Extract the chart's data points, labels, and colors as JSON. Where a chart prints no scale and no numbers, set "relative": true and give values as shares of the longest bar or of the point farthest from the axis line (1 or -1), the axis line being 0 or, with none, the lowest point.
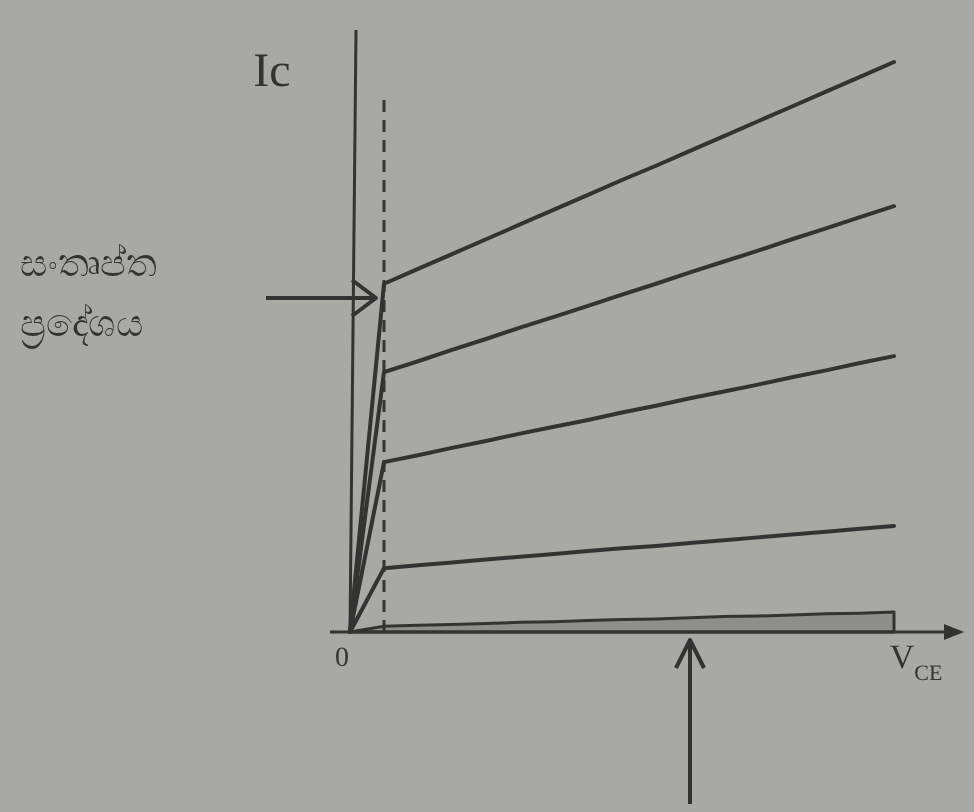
{
  "chart_data": {
    "type": "line",
    "relative": true,
    "xlabel": "V$_{CE}$",
    "ylabel": "Ic",
    "categories": [
      null,
      null,
      null,
      null,
      null,
      null,
      null,
      null,
      null,
      null,
      null,
      null,
      null,
      null,
      null,
      null,
      null
    ],
    "series": [
      {
        "color": "#333333",
        "values": [
          0,
          0.611,
          0.637,
          0.663,
          0.689,
          0.715,
          0.741,
          0.767,
          0.793,
          0.818,
          0.844,
          0.87,
          0.896,
          0.922,
          0.948,
          0.974,
          1.0
        ]
      },
      {
        "color": "#333333",
        "values": [
          0,
          0.456,
          0.475,
          0.495,
          0.514,
          0.534,
          0.553,
          0.572,
          0.592,
          0.611,
          0.631,
          0.65,
          0.669,
          0.689,
          0.708,
          0.728,
          0.747
        ]
      },
      {
        "color": "#333333",
        "values": [
          0,
          0.298,
          0.31,
          0.323,
          0.335,
          0.348,
          0.36,
          0.372,
          0.385,
          0.397,
          0.41,
          0.422,
          0.434,
          0.447,
          0.459,
          0.472,
          0.484
        ]
      },
      {
        "color": "#333333",
        "values": [
          0,
          0.112,
          0.117,
          0.122,
          0.127,
          0.132,
          0.137,
          0.142,
          0.147,
          0.151,
          0.156,
          0.161,
          0.166,
          0.171,
          0.176,
          0.181,
          0.186
        ]
      },
      {
        "type": "area",
        "color": "#333333",
        "values": [
          0,
          0.01,
          0.012,
          0.013,
          0.015,
          0.017,
          0.018,
          0.02,
          0.022,
          0.023,
          0.025,
          0.027,
          0.028,
          0.03,
          0.032,
          0.033,
          0.035
        ]
      }
    ],
    "annotations": [
      "සංතෘප්ත ප්‍රදේශය",
      "0"
    ]
  }
}
